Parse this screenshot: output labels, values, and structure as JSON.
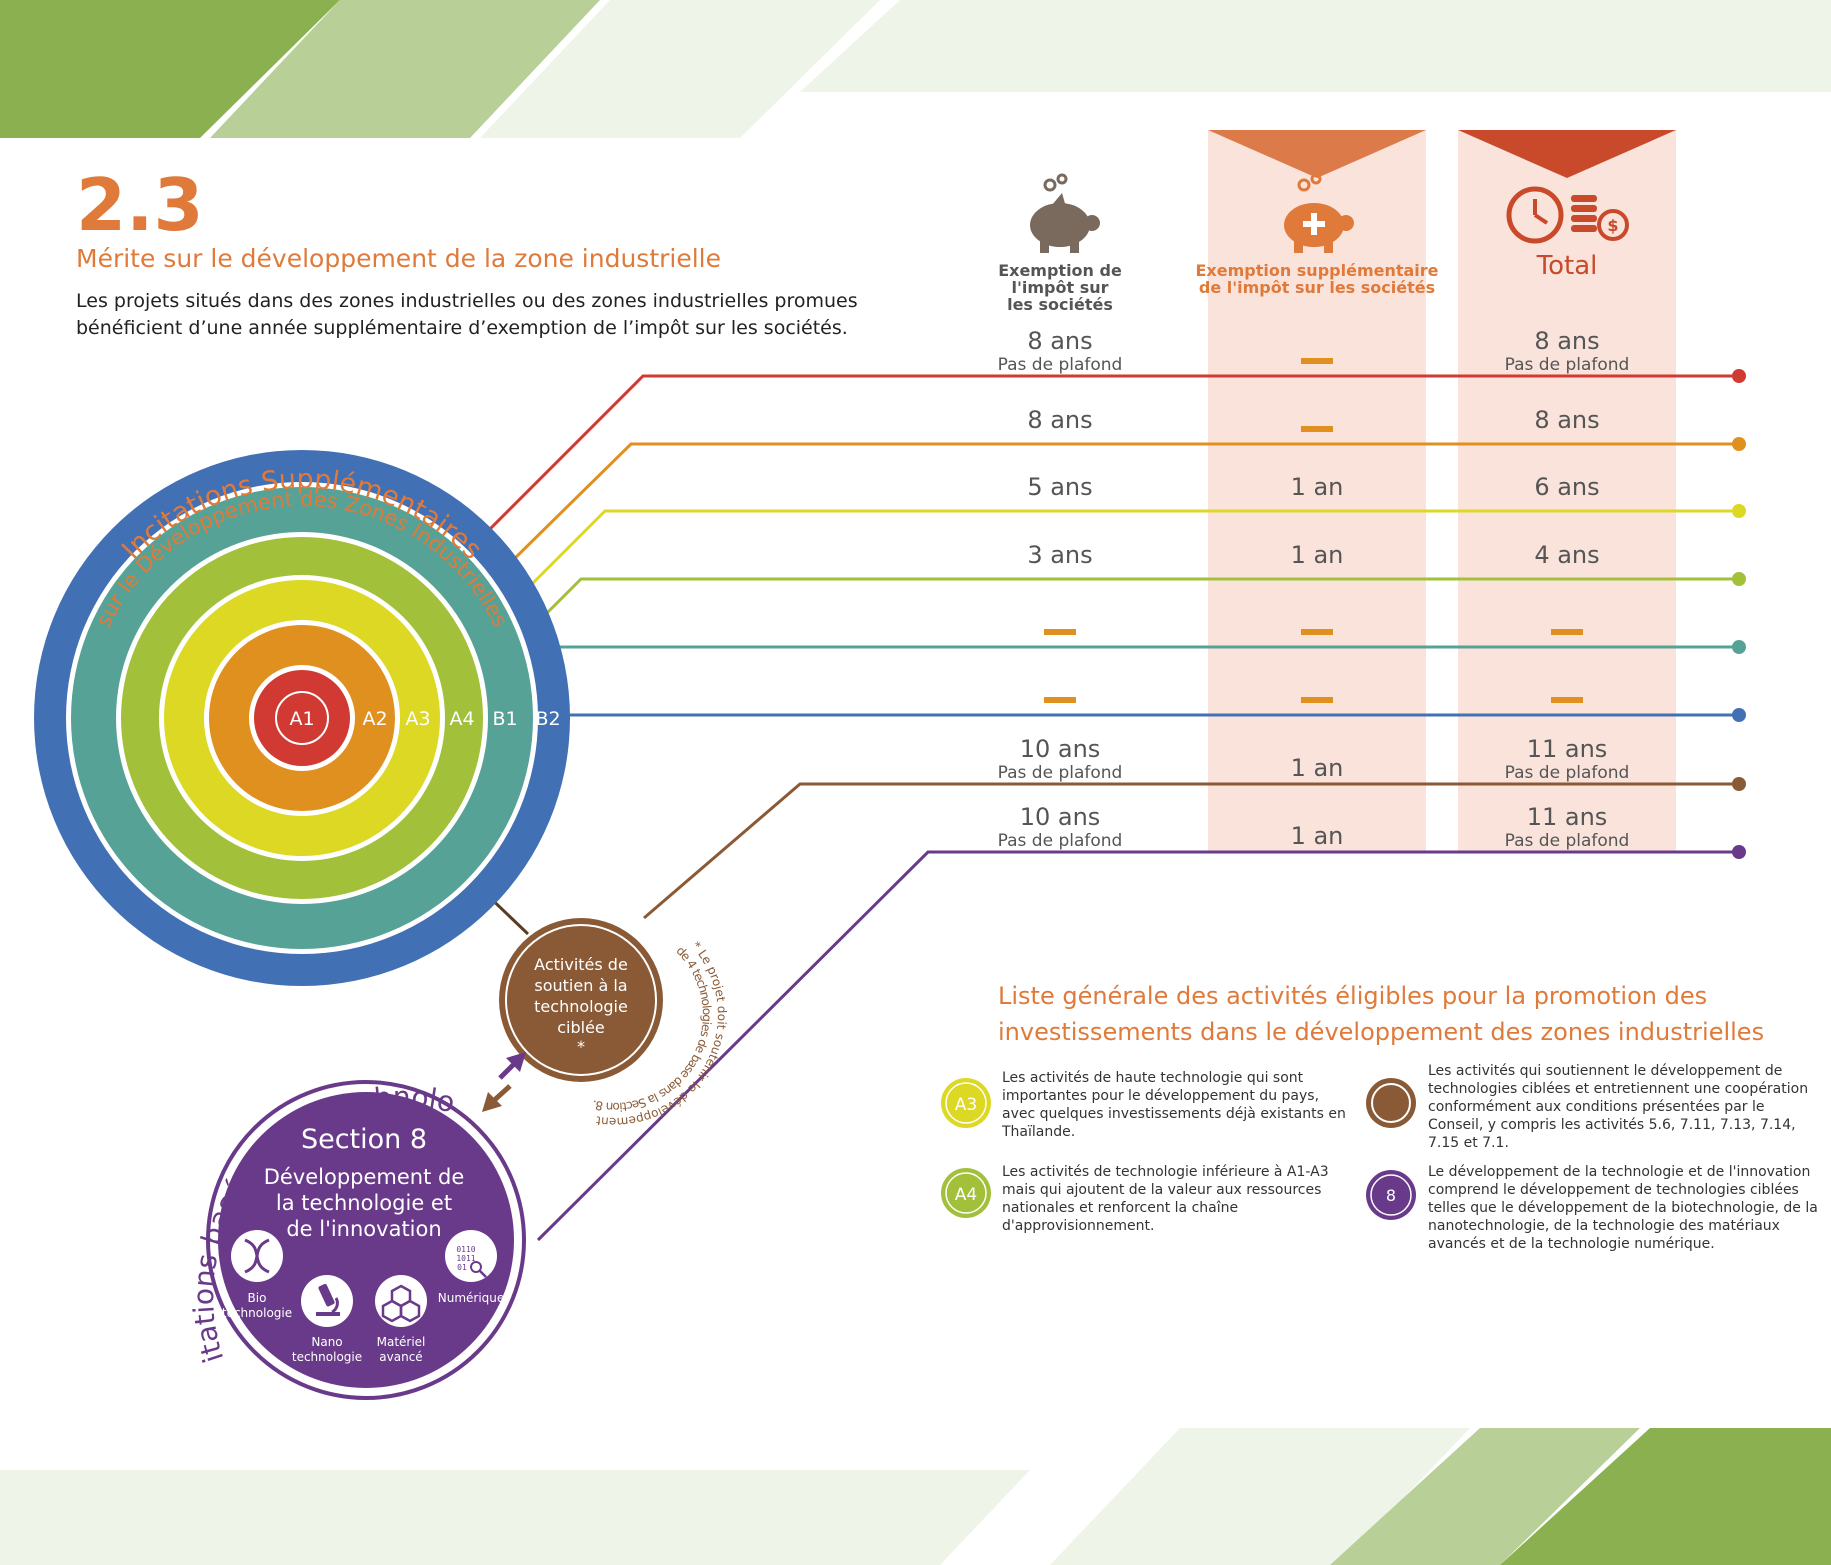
{
  "section_number": "2.3",
  "title": "Mérite sur le développement de la zone industrielle",
  "intro_lines": [
    "Les projets situés dans des zones industrielles ou des zones industrielles promues",
    "bénéficient d’une année supplémentaire d’exemption de l’impôt sur les sociétés."
  ],
  "colors": {
    "accent_orange": "#e07a3a",
    "purple": "#6a3a8a",
    "brown": "#8a5a36",
    "column_bg": "#f9e3db",
    "green_dark": "#8ab050",
    "green_light": "#b8d098",
    "green_pale": "#eef4e8"
  },
  "arc_title_line1": "Incitations Supplémentaires",
  "arc_title_line2": "sur le Développement des Zones Industrielles",
  "tech_arc_title": "Incitations basés sur la technologie",
  "columns": {
    "col1_lines": [
      "Exemption de",
      "l'impôt sur",
      "les sociétés"
    ],
    "col1_icon": "piggy-bank-icon",
    "col2_lines": [
      "Exemption supplémentaire",
      "de l'impôt sur les sociétés"
    ],
    "col2_icon": "piggy-bank-plus-icon",
    "col3_label": "Total",
    "col3_icon": "clock-coins-icon"
  },
  "rows": [
    {
      "zone": "A1",
      "color": "#d03a32",
      "exempt": "8 ans",
      "exempt_sub": "Pas de plafond",
      "extra": "—",
      "total": "8 ans",
      "total_sub": "Pas de plafond"
    },
    {
      "zone": "A2",
      "color": "#e0901e",
      "exempt": "8 ans",
      "exempt_sub": "",
      "extra": "—",
      "total": "8 ans",
      "total_sub": ""
    },
    {
      "zone": "A3",
      "color": "#dcd824",
      "exempt": "5 ans",
      "exempt_sub": "",
      "extra": "1 an",
      "total": "6 ans",
      "total_sub": ""
    },
    {
      "zone": "A4",
      "color": "#a2c03a",
      "exempt": "3 ans",
      "exempt_sub": "",
      "extra": "1 an",
      "total": "4 ans",
      "total_sub": ""
    },
    {
      "zone": "B1",
      "color": "#56a296",
      "exempt": "—",
      "exempt_sub": "",
      "extra": "—",
      "total": "—",
      "total_sub": ""
    },
    {
      "zone": "B2",
      "color": "#4270b4",
      "exempt": "—",
      "exempt_sub": "",
      "extra": "—",
      "total": "—",
      "total_sub": ""
    },
    {
      "zone": "support",
      "color": "#8a5a36",
      "exempt": "10 ans",
      "exempt_sub": "Pas de plafond",
      "extra": "1 an",
      "total": "11 ans",
      "total_sub": "Pas de plafond"
    },
    {
      "zone": "section8",
      "color": "#6a3a8a",
      "exempt": "10 ans",
      "exempt_sub": "Pas de plafond",
      "extra": "1 an",
      "total": "11 ans",
      "total_sub": "Pas de plafond"
    }
  ],
  "ring_labels": [
    "A1",
    "A2",
    "A3",
    "A4",
    "B1",
    "B2"
  ],
  "support_circle_lines": [
    "Activités de",
    "soutien à la",
    "technologie",
    "ciblée",
    "*"
  ],
  "support_note_line1": "* Le projet doit soutenir le développement",
  "support_note_line2": "de 4 technologies de base dans la Section 8.",
  "section8": {
    "title": "Section 8",
    "subtitle_lines": [
      "Développement de",
      "la technologie et",
      "de l'innovation"
    ],
    "techs": [
      {
        "icon": "dna-icon",
        "label_lines": [
          "Bio",
          "technologie"
        ]
      },
      {
        "icon": "microscope-icon",
        "label_lines": [
          "Nano",
          "technologie"
        ]
      },
      {
        "icon": "molecule-icon",
        "label_lines": [
          "Matériel",
          "avancé"
        ]
      },
      {
        "icon": "binary-search-icon",
        "label_lines": [
          "Numérique"
        ]
      }
    ]
  },
  "legend": {
    "title_lines": [
      "Liste générale des activités éligibles pour la promotion des",
      "investissements dans le développement des zones industrielles"
    ],
    "items": [
      {
        "badge": "A3",
        "color": "#dcd824",
        "lines": [
          "Les activités de haute technologie qui sont",
          "importantes pour le développement du pays,",
          "avec quelques investissements déjà existants en",
          "Thaïlande."
        ]
      },
      {
        "badge": "A4",
        "color": "#a2c03a",
        "lines": [
          "Les activités de technologie inférieure à A1-A3",
          "mais qui ajoutent de la valeur aux ressources",
          "nationales et renforcent la chaîne",
          "d'approvisionnement."
        ]
      },
      {
        "badge": "",
        "color": "#8a5a36",
        "lines": [
          "Les activités qui soutiennent le développement de",
          "technologies ciblées et entretiennent une coopération",
          "conformément aux conditions présentées par le",
          "Conseil, y compris les activités 5.6, 7.11, 7.13, 7.14,",
          "7.15 et 7.1."
        ]
      },
      {
        "badge": "8",
        "color": "#6a3a8a",
        "lines": [
          "Le développement de la technologie et de l'innovation",
          "comprend le développement de technologies ciblées",
          "telles que le développement de la biotechnologie, de la",
          "nanotechnologie, de la technologie des matériaux",
          "avancés et de la technologie numérique."
        ]
      }
    ]
  }
}
